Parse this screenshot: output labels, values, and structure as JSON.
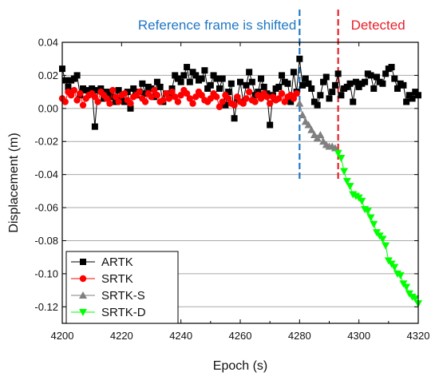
{
  "chart_data": {
    "type": "line",
    "title": "",
    "xlabel": "Epoch (s)",
    "ylabel": "Displacement (m)",
    "xlim": [
      4200,
      4320
    ],
    "ylim": [
      -0.13,
      0.04
    ],
    "xticks": [
      4200,
      4220,
      4240,
      4260,
      4280,
      4300,
      4320
    ],
    "yticks": [
      0.04,
      0.02,
      0.0,
      -0.02,
      -0.04,
      -0.06,
      -0.08,
      -0.1,
      -0.12
    ],
    "xtick_labels": [
      "4200",
      "4220",
      "4240",
      "4260",
      "4280",
      "4300",
      "4320"
    ],
    "ytick_labels": [
      "0.04",
      "0.02",
      "0.00",
      "-0.02",
      "-0.04",
      "-0.06",
      "-0.08",
      "-0.10",
      "-0.12"
    ],
    "grid": "horizontal",
    "legend_position": "bottom-left",
    "annotations": [
      {
        "text": "Reference frame is shifted",
        "x": 4280,
        "color": "#1f77c4"
      },
      {
        "text": "Detected",
        "x": 4293,
        "color": "#e8212a"
      }
    ],
    "series": [
      {
        "name": "ARTK",
        "marker": "square",
        "color": "#000000",
        "x": [
          4200,
          4201,
          4202,
          4203,
          4204,
          4205,
          4206,
          4207,
          4208,
          4209,
          4210,
          4211,
          4212,
          4213,
          4214,
          4215,
          4216,
          4217,
          4218,
          4219,
          4220,
          4221,
          4222,
          4223,
          4224,
          4225,
          4226,
          4227,
          4228,
          4229,
          4230,
          4231,
          4232,
          4233,
          4234,
          4235,
          4236,
          4237,
          4238,
          4239,
          4240,
          4241,
          4242,
          4243,
          4244,
          4245,
          4246,
          4247,
          4248,
          4249,
          4250,
          4251,
          4252,
          4253,
          4254,
          4255,
          4256,
          4257,
          4258,
          4259,
          4260,
          4261,
          4262,
          4263,
          4264,
          4265,
          4266,
          4267,
          4268,
          4269,
          4270,
          4271,
          4272,
          4273,
          4274,
          4275,
          4276,
          4277,
          4278,
          4279,
          4280,
          4281,
          4282,
          4283,
          4284,
          4285,
          4286,
          4287,
          4288,
          4289,
          4290,
          4291,
          4292,
          4293,
          4294,
          4295,
          4296,
          4297,
          4298,
          4299,
          4300,
          4301,
          4302,
          4303,
          4304,
          4305,
          4306,
          4307,
          4308,
          4309,
          4310,
          4311,
          4312,
          4313,
          4314,
          4315,
          4316,
          4317,
          4318,
          4319,
          4320
        ],
        "values": [
          0.024,
          0.017,
          0.013,
          0.017,
          0.018,
          0.02,
          0.008,
          0.012,
          0.011,
          0.01,
          0.012,
          -0.011,
          0.011,
          0.012,
          0.006,
          0.01,
          0.009,
          0.007,
          0.004,
          0.011,
          0.005,
          0.004,
          0.01,
          0.0,
          0.012,
          0.008,
          0.01,
          0.015,
          0.009,
          0.013,
          0.012,
          0.007,
          0.016,
          0.013,
          0.004,
          0.009,
          0.007,
          0.012,
          0.02,
          0.018,
          0.016,
          0.02,
          0.025,
          0.016,
          0.022,
          0.02,
          0.017,
          0.018,
          0.023,
          0.012,
          0.014,
          0.02,
          0.018,
          0.012,
          0.018,
          0.002,
          0.01,
          0.015,
          -0.006,
          0.006,
          0.016,
          0.004,
          0.014,
          0.022,
          0.016,
          0.008,
          0.01,
          0.018,
          0.013,
          0.009,
          -0.01,
          0.008,
          0.012,
          0.013,
          0.02,
          0.016,
          0.015,
          0.004,
          0.022,
          0.01,
          0.03,
          0.014,
          0.018,
          0.015,
          0.012,
          0.004,
          0.002,
          0.008,
          0.016,
          0.019,
          0.006,
          0.01,
          0.014,
          0.021,
          0.008,
          0.012,
          0.013,
          0.015,
          0.004,
          0.016,
          0.013,
          0.015,
          0.016,
          0.021,
          0.02,
          0.012,
          0.019,
          0.016,
          0.015,
          0.021,
          0.024,
          0.025,
          0.018,
          0.012,
          0.015,
          0.014,
          0.004,
          0.008,
          0.006,
          0.01,
          0.008
        ]
      },
      {
        "name": "SRTK",
        "marker": "circle",
        "color": "#ff0000",
        "x": [
          4200,
          4201,
          4202,
          4203,
          4204,
          4205,
          4206,
          4207,
          4208,
          4209,
          4210,
          4211,
          4212,
          4213,
          4214,
          4215,
          4216,
          4217,
          4218,
          4219,
          4220,
          4221,
          4222,
          4223,
          4224,
          4225,
          4226,
          4227,
          4228,
          4229,
          4230,
          4231,
          4232,
          4233,
          4234,
          4235,
          4236,
          4237,
          4238,
          4239,
          4240,
          4241,
          4242,
          4243,
          4244,
          4245,
          4246,
          4247,
          4248,
          4249,
          4250,
          4251,
          4252,
          4253,
          4254,
          4255,
          4256,
          4257,
          4258,
          4259,
          4260,
          4261,
          4262,
          4263,
          4264,
          4265,
          4266,
          4267,
          4268,
          4269,
          4270,
          4271,
          4272,
          4273,
          4274,
          4275,
          4276,
          4277,
          4278,
          4279
        ],
        "values": [
          0.006,
          0.004,
          0.01,
          0.008,
          0.011,
          0.005,
          0.009,
          0.002,
          0.006,
          0.008,
          0.009,
          0.007,
          0.004,
          0.01,
          0.008,
          0.006,
          0.003,
          0.011,
          0.007,
          0.004,
          0.008,
          0.009,
          0.005,
          0.003,
          0.007,
          0.008,
          0.01,
          0.006,
          0.004,
          0.009,
          0.007,
          0.011,
          0.008,
          0.004,
          0.005,
          0.009,
          0.006,
          0.01,
          0.007,
          0.004,
          0.008,
          0.011,
          0.009,
          0.006,
          0.003,
          0.007,
          0.01,
          0.008,
          0.005,
          0.004,
          0.006,
          0.009,
          0.007,
          0.001,
          0.004,
          0.008,
          0.006,
          0.003,
          0.002,
          0.007,
          0.004,
          0.003,
          0.006,
          0.01,
          0.005,
          0.004,
          0.008,
          0.006,
          0.009,
          0.007,
          0.003,
          0.007,
          0.005,
          0.006,
          0.009,
          0.004,
          0.007,
          0.008,
          0.006,
          0.009
        ]
      },
      {
        "name": "SRTK-S",
        "marker": "triangle-up",
        "color": "#808080",
        "x": [
          4280,
          4281,
          4282,
          4283,
          4284,
          4285,
          4286,
          4287,
          4288,
          4289,
          4290,
          4291,
          4292
        ],
        "values": [
          0.003,
          -0.004,
          -0.008,
          -0.01,
          -0.013,
          -0.016,
          -0.018,
          -0.016,
          -0.02,
          -0.022,
          -0.023,
          -0.023,
          -0.024
        ]
      },
      {
        "name": "SRTK-D",
        "marker": "triangle-down",
        "color": "#00ff00",
        "x": [
          4293,
          4294,
          4295,
          4296,
          4297,
          4298,
          4299,
          4300,
          4301,
          4302,
          4303,
          4304,
          4305,
          4306,
          4307,
          4308,
          4309,
          4310,
          4311,
          4312,
          4313,
          4314,
          4315,
          4316,
          4317,
          4318,
          4319,
          4320
        ],
        "values": [
          -0.027,
          -0.03,
          -0.038,
          -0.044,
          -0.047,
          -0.052,
          -0.053,
          -0.054,
          -0.056,
          -0.061,
          -0.062,
          -0.066,
          -0.07,
          -0.075,
          -0.077,
          -0.079,
          -0.083,
          -0.092,
          -0.094,
          -0.096,
          -0.1,
          -0.101,
          -0.106,
          -0.108,
          -0.112,
          -0.114,
          -0.115,
          -0.118
        ]
      }
    ]
  }
}
